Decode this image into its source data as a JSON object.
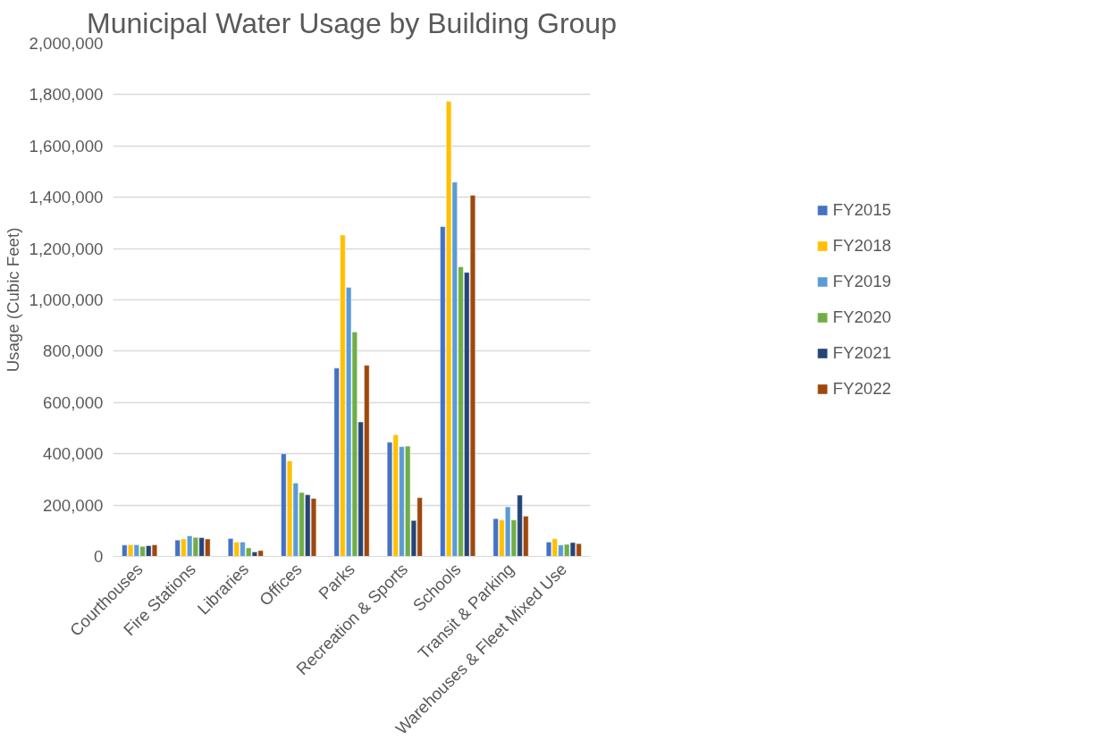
{
  "chart_data": {
    "type": "bar",
    "title": "Municipal Water Usage by Building Group",
    "ylabel": "Usage (Cubic Feet)",
    "categories": [
      "Courthouses",
      "Fire Stations",
      "Libraries",
      "Offices",
      "Parks",
      "Recreation & Sports",
      "Schools",
      "Transit & Parking",
      "Warehouses & Fleet Mixed Use"
    ],
    "series": [
      {
        "name": "FY2015",
        "color": "#4472c4",
        "values": [
          44000,
          64000,
          70000,
          400000,
          734000,
          445000,
          1286000,
          147000,
          56000
        ]
      },
      {
        "name": "FY2018",
        "color": "#ffc000",
        "values": [
          45000,
          68000,
          56000,
          372000,
          1253000,
          474000,
          1774000,
          142000,
          69000
        ]
      },
      {
        "name": "FY2019",
        "color": "#5b9bd5",
        "values": [
          45000,
          80000,
          56000,
          286000,
          1049000,
          428000,
          1459000,
          193000,
          44000
        ]
      },
      {
        "name": "FY2020",
        "color": "#70ad47",
        "values": [
          39000,
          74000,
          33000,
          249000,
          875000,
          430000,
          1129000,
          142000,
          47000
        ]
      },
      {
        "name": "FY2021",
        "color": "#264478",
        "values": [
          42000,
          73000,
          17000,
          240000,
          524000,
          140000,
          1107000,
          239000,
          54000
        ]
      },
      {
        "name": "FY2022",
        "color": "#9e480e",
        "values": [
          45000,
          68000,
          23000,
          226000,
          745000,
          229000,
          1408000,
          157000,
          50000
        ]
      }
    ],
    "ylim": [
      0,
      2000000
    ],
    "yticks": [
      {
        "value": 0,
        "label": "0"
      },
      {
        "value": 200000,
        "label": "200,000"
      },
      {
        "value": 400000,
        "label": "400,000"
      },
      {
        "value": 600000,
        "label": "600,000"
      },
      {
        "value": 800000,
        "label": "800,000"
      },
      {
        "value": 1000000,
        "label": "1,000,000"
      },
      {
        "value": 1200000,
        "label": "1,200,000"
      },
      {
        "value": 1400000,
        "label": "1,400,000"
      },
      {
        "value": 1600000,
        "label": "1,600,000"
      },
      {
        "value": 1800000,
        "label": "1,800,000"
      },
      {
        "value": 2000000,
        "label": "2,000,000"
      }
    ],
    "grid": "y",
    "legend": "right"
  }
}
